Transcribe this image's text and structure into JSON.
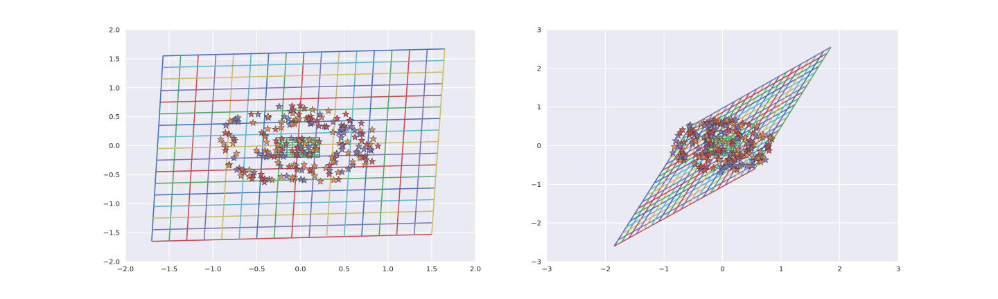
{
  "chart_data": [
    {
      "type": "scatter",
      "subtype": "transformed-grid-with-scatter",
      "xlim": [
        -2.0,
        2.0
      ],
      "ylim": [
        -2.0,
        2.0
      ],
      "xticks": [
        -2.0,
        -1.5,
        -1.0,
        -0.5,
        0.0,
        0.5,
        1.0,
        1.5,
        2.0
      ],
      "yticks": [
        -2.0,
        -1.5,
        -1.0,
        -0.5,
        0.0,
        0.5,
        1.0,
        1.5,
        2.0
      ],
      "xtick_labels": [
        "−2.0",
        "−1.5",
        "−1.0",
        "−0.5",
        "0.0",
        "0.5",
        "1.0",
        "1.5",
        "2.0"
      ],
      "ytick_labels": [
        "−2.0",
        "−1.5",
        "−1.0",
        "−0.5",
        "0.0",
        "0.5",
        "1.0",
        "1.5",
        "2.0"
      ],
      "grid": true,
      "background": "#eaeaf2",
      "grid_corners": [
        [
          -1.7,
          -1.65
        ],
        [
          1.5,
          -1.53
        ],
        [
          1.65,
          1.67
        ],
        [
          -1.57,
          1.55
        ]
      ],
      "grid_lines_per_direction": 17,
      "line_colors": [
        "#4c72b0",
        "#55a868",
        "#c44e52",
        "#8172b2",
        "#ccb974",
        "#64b5cd"
      ],
      "marker": "star",
      "marker_colors": [
        "#c44e52",
        "#8172b2",
        "#dd8452"
      ],
      "rings": [
        {
          "cx": -0.05,
          "cy": 0.0,
          "rx": 0.85,
          "ry": 0.62,
          "count": 110
        },
        {
          "cx": 0.03,
          "cy": 0.02,
          "rx": 0.5,
          "ry": 0.42,
          "count": 70
        }
      ],
      "inner_blob": {
        "x_range": [
          -0.28,
          0.22
        ],
        "y_range": [
          -0.2,
          0.14
        ]
      }
    },
    {
      "type": "scatter",
      "subtype": "transformed-grid-with-scatter",
      "xlim": [
        -3,
        3
      ],
      "ylim": [
        -3,
        3
      ],
      "xticks": [
        -3,
        -2,
        -1,
        0,
        1,
        2,
        3
      ],
      "yticks": [
        -3,
        -2,
        -1,
        0,
        1,
        2,
        3
      ],
      "xtick_labels": [
        "−3",
        "−2",
        "−1",
        "0",
        "1",
        "2",
        "3"
      ],
      "ytick_labels": [
        "−3",
        "−2",
        "−1",
        "0",
        "1",
        "2",
        "3"
      ],
      "grid": true,
      "background": "#eaeaf2",
      "grid_corners": [
        [
          -1.85,
          -2.6
        ],
        [
          0.55,
          -0.6
        ],
        [
          1.85,
          2.55
        ],
        [
          -0.55,
          0.5
        ]
      ],
      "grid_lines_per_direction": 20,
      "line_colors": [
        "#4c72b0",
        "#55a868",
        "#c44e52",
        "#8172b2",
        "#ccb974",
        "#64b5cd"
      ],
      "marker": "star",
      "marker_colors": [
        "#c44e52",
        "#8172b2",
        "#dd8452"
      ],
      "rings": [
        {
          "cx": 0.0,
          "cy": 0.0,
          "rx": 0.8,
          "ry": 0.62,
          "count": 110
        },
        {
          "cx": 0.0,
          "cy": 0.0,
          "rx": 0.5,
          "ry": 0.4,
          "count": 60
        }
      ],
      "inner_blob": {
        "x_range": [
          -0.3,
          0.3
        ],
        "y_range": [
          -0.25,
          0.25
        ]
      }
    }
  ]
}
